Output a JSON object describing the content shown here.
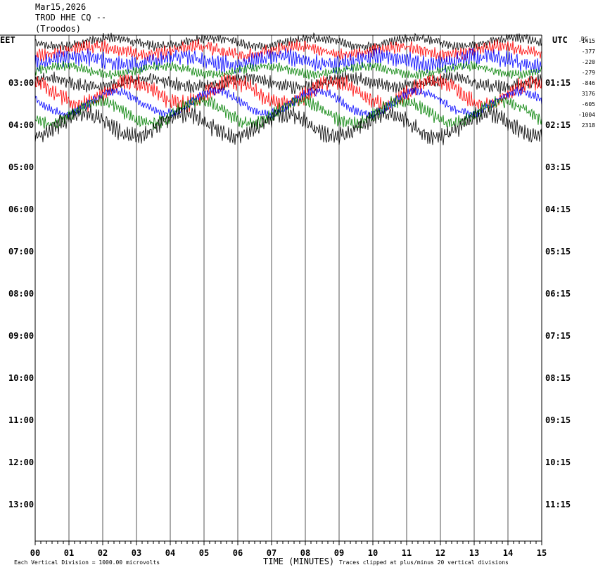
{
  "header": {
    "date": "Mar15,2026",
    "station": "TROD HHE CQ --",
    "location": "(Troodos)"
  },
  "chart_data": {
    "type": "line",
    "title": "TROD HHE CQ --",
    "left_axis_label": "EET",
    "right_axis_label": "UTC",
    "dc_label": "DC",
    "xlabel": "TIME (MINUTES)",
    "x_ticks": [
      "00",
      "01",
      "02",
      "03",
      "04",
      "05",
      "06",
      "07",
      "08",
      "09",
      "10",
      "11",
      "12",
      "13",
      "14",
      "15"
    ],
    "xlim": [
      0,
      15
    ],
    "left_hour_labels": [
      "03:00",
      "04:00",
      "05:00",
      "06:00",
      "07:00",
      "08:00",
      "09:00",
      "10:00",
      "11:00",
      "12:00",
      "13:00"
    ],
    "right_hour_labels": [
      "01:15",
      "02:15",
      "03:15",
      "04:15",
      "05:15",
      "06:15",
      "07:15",
      "08:15",
      "09:15",
      "10:15",
      "11:15"
    ],
    "dc_offsets": [
      "-1415",
      "-377",
      "-220",
      "-279",
      "-846",
      "3176",
      "-605",
      "-1004",
      "2318"
    ],
    "trace_colors": [
      "#000000",
      "#ff0000",
      "#0000ff",
      "#008000"
    ],
    "traces_recorded": 9,
    "footer_left": "Each Vertical Division = 1000.00 microvolts",
    "footer_right": "Traces clipped at plus/minus 20 vertical divisions"
  }
}
